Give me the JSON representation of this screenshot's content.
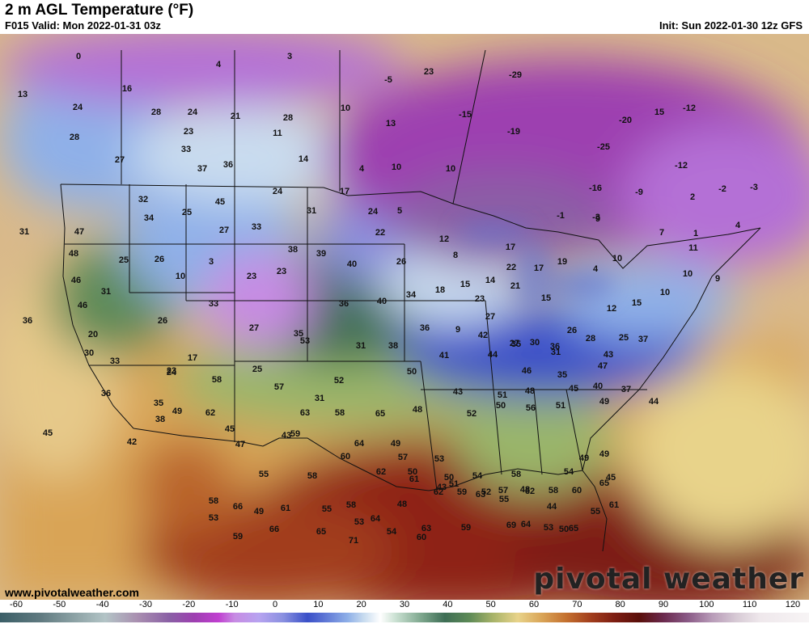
{
  "header": {
    "title": "2 m AGL Temperature (°F)",
    "valid": "F015 Valid: Mon 2022-01-31 03z",
    "init": "Init: Sun 2022-01-30 12z GFS"
  },
  "footer": {
    "source_url": "www.pivotalweather.com",
    "brand": "pivotal weather"
  },
  "colorbar": {
    "units": "°F",
    "ticks": [
      "-60",
      "-50",
      "-40",
      "-30",
      "-20",
      "-10",
      "0",
      "10",
      "20",
      "30",
      "40",
      "50",
      "60",
      "70",
      "80",
      "90",
      "100",
      "110",
      "120"
    ]
  },
  "colors": {
    "cold_extreme": "#3b5e67",
    "very_cold": "#9d3fb0",
    "cold": "#3a50c8",
    "freezing": "#ffffff",
    "cool": "#3e6e55",
    "mild": "#e8d38a",
    "warm": "#c4702f",
    "hot": "#7d1d12",
    "boundary_lines": "#111111"
  },
  "temperature_labels": [
    "0",
    "3",
    "4",
    "23",
    "-5",
    "-29",
    "13",
    "16",
    "28",
    "24",
    "21",
    "28",
    "10",
    "13",
    "-15",
    "-19",
    "24",
    "23",
    "11",
    "-20",
    "15",
    "-12",
    "28",
    "27",
    "33",
    "37",
    "36",
    "14",
    "4",
    "10",
    "10",
    "-25",
    "-12",
    "32",
    "25",
    "24",
    "17",
    "-16",
    "-9",
    "-3",
    "-2",
    "2",
    "-3",
    "31",
    "34",
    "45",
    "24",
    "31",
    "5",
    "9",
    "-1",
    "47",
    "27",
    "33",
    "22",
    "12",
    "7",
    "1",
    "4",
    "48",
    "25",
    "26",
    "3",
    "38",
    "39",
    "8",
    "17",
    "11",
    "46",
    "10",
    "23",
    "23",
    "40",
    "26",
    "22",
    "17",
    "19",
    "10",
    "4",
    "10",
    "9",
    "31",
    "18",
    "15",
    "14",
    "21",
    "46",
    "33",
    "36",
    "40",
    "34",
    "23",
    "15",
    "12",
    "15",
    "10",
    "36",
    "27",
    "35",
    "9",
    "36",
    "42",
    "27",
    "36",
    "30",
    "26",
    "26",
    "20",
    "27",
    "53",
    "31",
    "38",
    "41",
    "44",
    "35",
    "31",
    "28",
    "25",
    "30",
    "17",
    "25",
    "50",
    "46",
    "35",
    "47",
    "43",
    "37",
    "33",
    "23",
    "24",
    "58",
    "57",
    "52",
    "31",
    "43",
    "51",
    "48",
    "45",
    "40",
    "37",
    "36",
    "35",
    "49",
    "62",
    "63",
    "58",
    "65",
    "48",
    "52",
    "50",
    "56",
    "51",
    "49",
    "44",
    "45",
    "42",
    "38",
    "45",
    "59",
    "64",
    "57",
    "50",
    "53",
    "51",
    "54",
    "58",
    "54",
    "49",
    "49",
    "45",
    "47",
    "43",
    "60",
    "49",
    "50",
    "52",
    "48",
    "44",
    "50",
    "55",
    "55",
    "58",
    "62",
    "61",
    "43",
    "63",
    "55",
    "53",
    "58",
    "66",
    "49",
    "61",
    "55",
    "58",
    "53",
    "64",
    "48",
    "62",
    "59",
    "57",
    "62",
    "58",
    "60",
    "65",
    "61",
    "53",
    "59",
    "66",
    "65",
    "71",
    "54",
    "60",
    "63",
    "59",
    "69",
    "64",
    "65"
  ]
}
